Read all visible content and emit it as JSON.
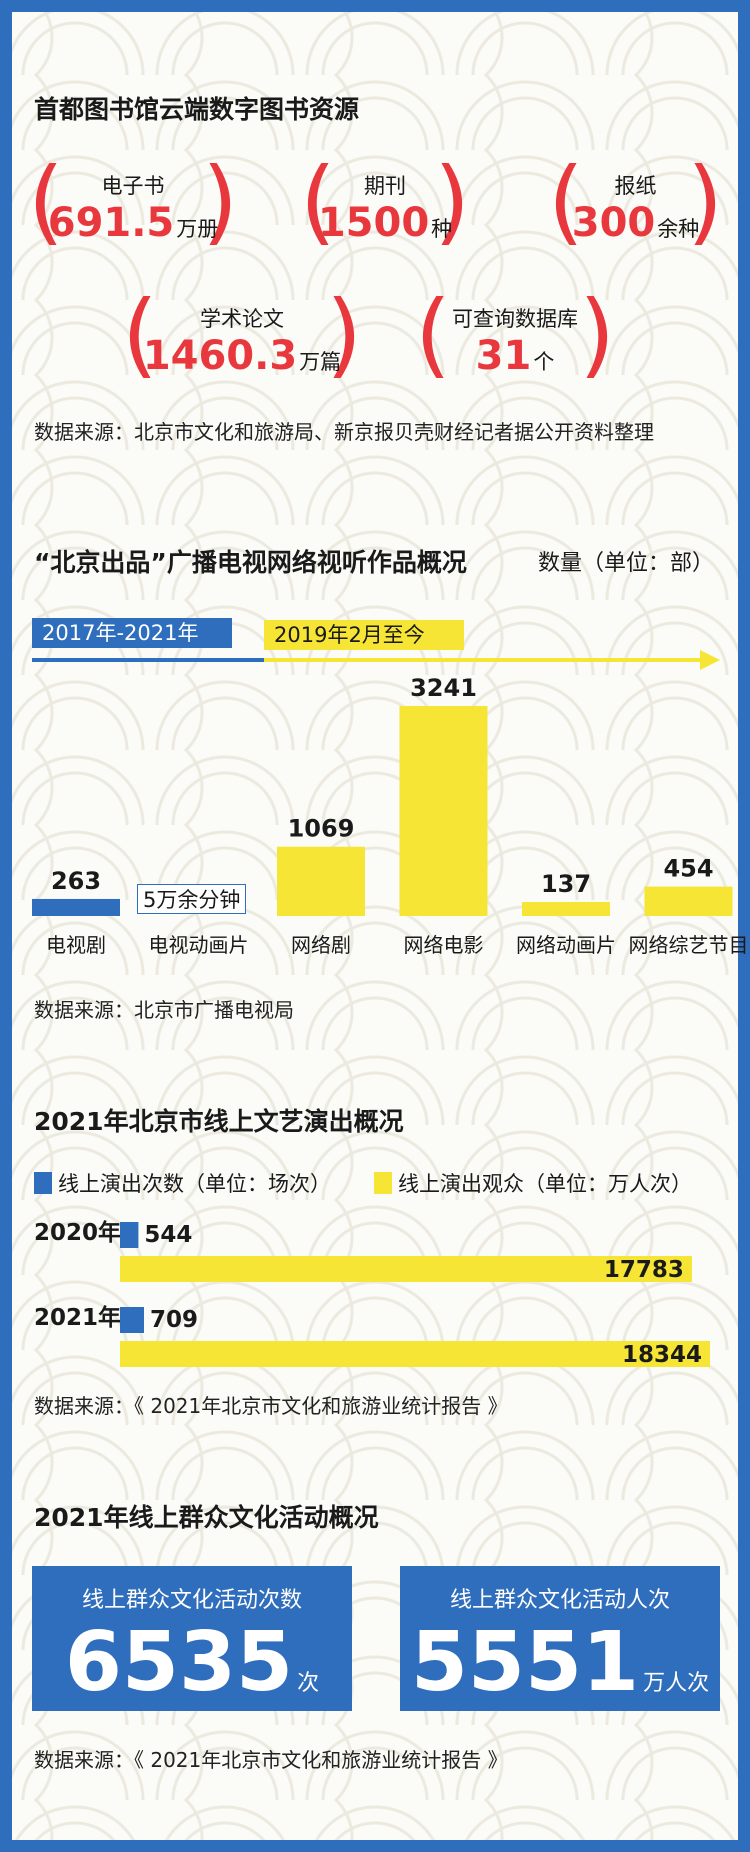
{
  "colors": {
    "blue": "#2f6dbd",
    "yellow": "#f7e535",
    "red": "#e8383d"
  },
  "section1": {
    "title": "首都图书馆云端数字图书资源",
    "stats": [
      {
        "label": "电子书",
        "value": "691.5",
        "unit": "万册"
      },
      {
        "label": "期刊",
        "value": "1500",
        "unit": "种"
      },
      {
        "label": "报纸",
        "value": "300",
        "unit": "余种"
      },
      {
        "label": "学术论文",
        "value": "1460.3",
        "unit": "万篇"
      },
      {
        "label": "可查询数据库",
        "value": "31",
        "unit": "个"
      }
    ],
    "source": "数据来源：北京市文化和旅游局、新京报贝壳财经记者据公开资料整理"
  },
  "section2": {
    "title": "“北京出品”广播电视网络视听作品概况",
    "subtitle": "数量（单位：部）",
    "period_blue": "2017年-2021年",
    "period_yellow": "2019年2月至今",
    "callout": "5万余分钟",
    "source": "数据来源：北京市广播电视局"
  },
  "section3": {
    "title": "2021年北京市线上文艺演出概况",
    "legend_blue": "线上演出次数（单位：场次）",
    "legend_yellow": "线上演出观众（单位：万人次）",
    "source": "数据来源：《 2021年北京市文化和旅游业统计报告 》"
  },
  "section4": {
    "title": "2021年线上群众文化活动概况",
    "card1": {
      "label": "线上群众文化活动次数",
      "value": "6535",
      "unit": "次"
    },
    "card2": {
      "label": "线上群众文化活动人次",
      "value": "5551",
      "unit": "万人次"
    },
    "source": "数据来源：《 2021年北京市文化和旅游业统计报告 》"
  },
  "chart_data": [
    {
      "type": "bar",
      "title": "“北京出品”广播电视网络视听作品概况",
      "ylabel": "数量（单位：部）",
      "categories": [
        "电视剧",
        "电视动画片",
        "网络剧",
        "网络电影",
        "网络动画片",
        "网络综艺节目"
      ],
      "values": [
        263,
        null,
        1069,
        3241,
        137,
        454
      ],
      "value_labels": [
        "263",
        "5万余分钟",
        "1069",
        "3241",
        "137",
        "454"
      ],
      "colors": [
        "#2f6dbd",
        "#2f6dbd",
        "#f7e535",
        "#f7e535",
        "#f7e535",
        "#f7e535"
      ]
    },
    {
      "type": "bar",
      "title": "2021年北京市线上文艺演出概况",
      "categories": [
        "2020年",
        "2021年"
      ],
      "series": [
        {
          "name": "线上演出次数（单位：场次）",
          "values": [
            544,
            709
          ],
          "color": "#2f6dbd"
        },
        {
          "name": "线上演出观众（单位：万人次）",
          "values": [
            17783,
            18344
          ],
          "color": "#f7e535"
        }
      ]
    }
  ]
}
